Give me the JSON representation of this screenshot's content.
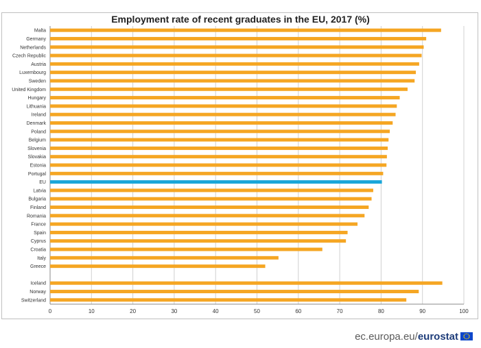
{
  "chart_data": {
    "type": "bar",
    "orientation": "horizontal",
    "title": "Employment rate of recent graduates in the EU, 2017 (%)",
    "xlim": [
      0,
      100
    ],
    "x_ticks": [
      "0",
      "10",
      "20",
      "30",
      "40",
      "50",
      "60",
      "70",
      "80",
      "90",
      "100"
    ],
    "grid": "vertical",
    "categories": [
      "Malta",
      "Germany",
      "Netherlands",
      "Czech Republic",
      "Austria",
      "Luxembourg",
      "Sweden",
      "United Kingdom",
      "Hungary",
      "Lithuania",
      "Ireland",
      "Denmark",
      "Poland",
      "Belgium",
      "Slovenia",
      "Slovakia",
      "Estonia",
      "Portugal",
      "EU",
      "Latvia",
      "Bulgaria",
      "Finland",
      "Romania",
      "France",
      "Spain",
      "Cyprus",
      "Croatia",
      "Italy",
      "Greece",
      "",
      "Iceland",
      "Norway",
      "Switzerland"
    ],
    "values": [
      94.5,
      90.9,
      90.3,
      89.8,
      89.2,
      88.4,
      88.1,
      86.4,
      84.5,
      83.8,
      83.5,
      82.8,
      82.1,
      81.8,
      81.6,
      81.4,
      81.3,
      80.5,
      80.2,
      78.1,
      77.7,
      77.0,
      76.0,
      74.3,
      71.9,
      71.5,
      65.8,
      55.2,
      52.0,
      null,
      94.8,
      89.1,
      86.1
    ],
    "highlight": "EU",
    "colors": {
      "bar": "#f5a623",
      "highlight": "#1aa6d9",
      "grid": "#d0d0d0",
      "axis": "#888888"
    }
  },
  "footer": {
    "domain": "ec.europa.eu/",
    "brand": "eurostat"
  }
}
